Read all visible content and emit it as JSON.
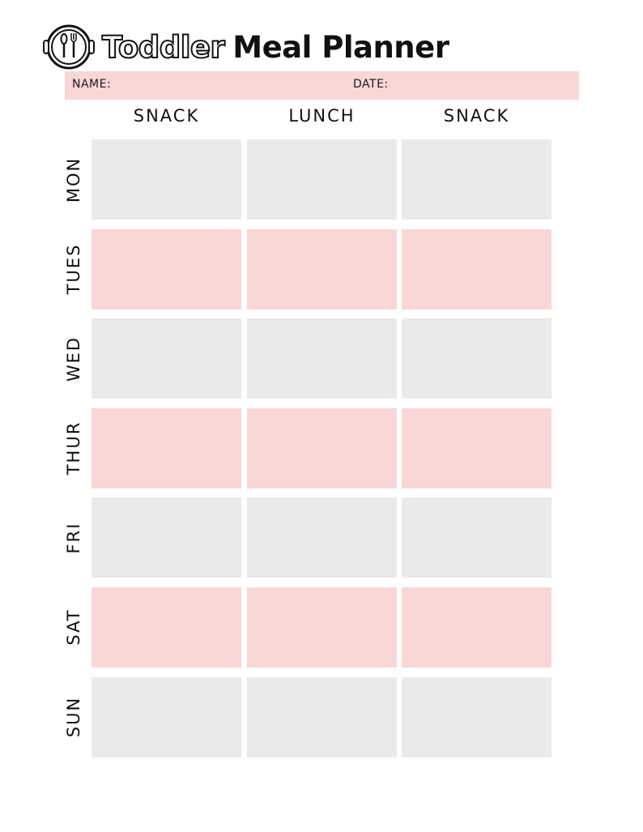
{
  "header": {
    "logo_icon": "plate-fork-spoon-icon",
    "title_outline": "Toddler",
    "title_solid": "Meal Planner"
  },
  "fields": {
    "name_label": "NAME:",
    "date_label": "DATE:"
  },
  "columns": [
    "SNACK",
    "LUNCH",
    "SNACK"
  ],
  "days": [
    "MON",
    "TUES",
    "WED",
    "THUR",
    "FRI",
    "SAT",
    "SUN"
  ],
  "colors": {
    "pink": "#f8d7d6",
    "gray": "#e9eaeb",
    "text": "#111111"
  }
}
